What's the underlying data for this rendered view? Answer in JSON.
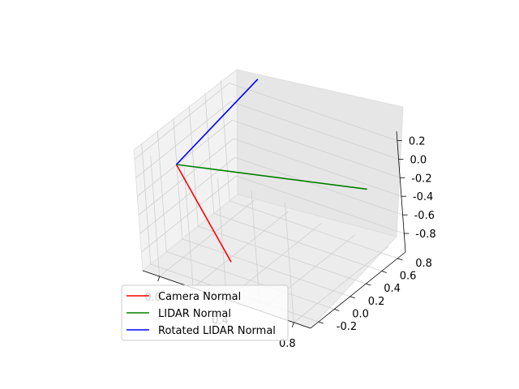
{
  "chart_data": {
    "type": "line3d",
    "title": "",
    "xlabel": "",
    "ylabel": "",
    "zlabel": "",
    "xlim": [
      -0.1,
      0.9
    ],
    "ylim": [
      -0.3,
      0.9
    ],
    "zlim": [
      -1.0,
      0.3
    ],
    "xticks": [
      "0.0",
      "0.4",
      "0.8"
    ],
    "yticks": [
      "-0.2",
      "0.0",
      "0.2",
      "0.4",
      "0.6",
      "0.8"
    ],
    "zticks": [
      "-0.8",
      "-0.6",
      "-0.4",
      "-0.2",
      "0.0",
      "0.2"
    ],
    "grid": true,
    "legend_position": "lower-left",
    "series": [
      {
        "name": "Camera Normal",
        "color": "#ff0000",
        "points": [
          [
            0,
            0,
            0
          ],
          [
            0.25,
            0.08,
            -0.95
          ]
        ]
      },
      {
        "name": "LIDAR Normal",
        "color": "#008000",
        "points": [
          [
            0,
            0,
            0
          ],
          [
            0.95,
            0.4,
            0.05
          ]
        ]
      },
      {
        "name": "Rotated LIDAR Normal",
        "color": "#0000ff",
        "points": [
          [
            0,
            0,
            0
          ],
          [
            0.05,
            0.95,
            0.3
          ]
        ]
      }
    ]
  }
}
